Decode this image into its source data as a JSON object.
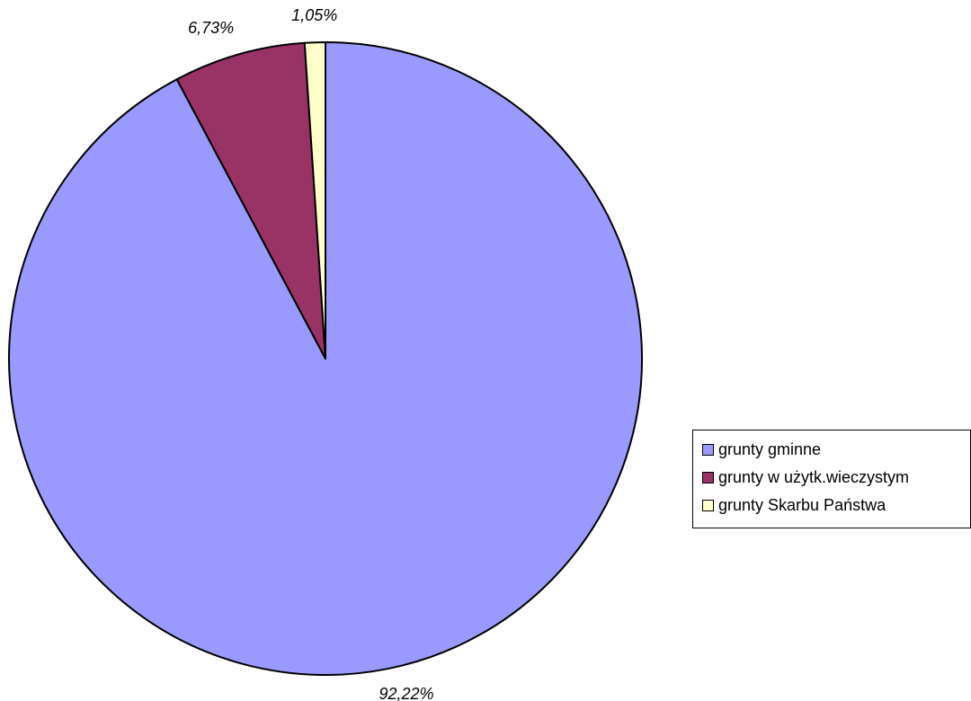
{
  "chart_data": {
    "type": "pie",
    "title": "",
    "slices": [
      {
        "label": "grunty gminne",
        "value": 92.22,
        "value_label": "92,22%",
        "color": "#9999ff"
      },
      {
        "label": "grunty w użytk.wieczystym",
        "value": 6.73,
        "value_label": "6,73%",
        "color": "#993366"
      },
      {
        "label": "grunty Skarbu Państwa",
        "value": 1.05,
        "value_label": "1,05%",
        "color": "#ffffcc"
      }
    ],
    "start_angle": "top",
    "direction": "clockwise",
    "legend": {
      "placement": "right",
      "border": true
    },
    "outline_color": "#000000"
  }
}
